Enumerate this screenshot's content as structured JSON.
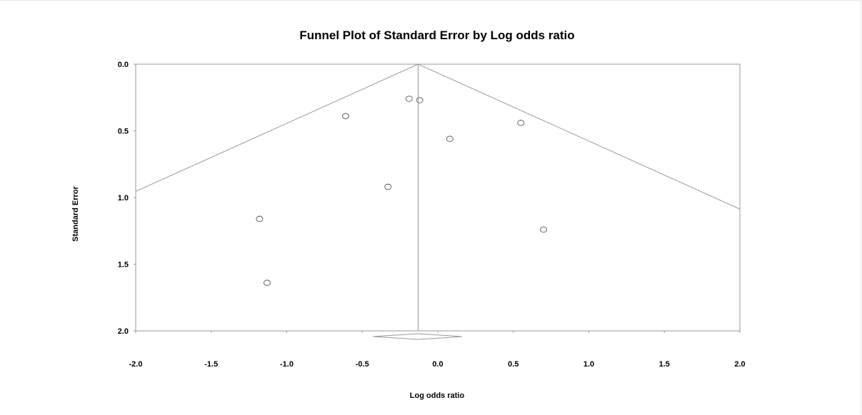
{
  "chart_data": {
    "type": "scatter",
    "title": "Funnel Plot of Standard Error by Log odds ratio",
    "xlabel": "Log odds ratio",
    "ylabel": "Standard Error",
    "xlim": [
      -2.0,
      2.0
    ],
    "ylim": [
      0.0,
      2.0
    ],
    "y_inverted": true,
    "grid": false,
    "x_ticks": [
      "-2.0",
      "-1.5",
      "-1.0",
      "-0.5",
      "0.0",
      "0.5",
      "1.0",
      "1.5",
      "2.0"
    ],
    "x_tick_values": [
      -2.0,
      -1.5,
      -1.0,
      -0.5,
      0.0,
      0.5,
      1.0,
      1.5,
      2.0
    ],
    "y_ticks": [
      "0.0",
      "0.5",
      "1.0",
      "1.5",
      "2.0"
    ],
    "y_tick_values": [
      0.0,
      0.5,
      1.0,
      1.5,
      2.0
    ],
    "summary_estimate": -0.13,
    "summary_ci": [
      -0.43,
      0.16
    ],
    "funnel_z": 1.96,
    "points": [
      {
        "x": -0.19,
        "y": 0.26
      },
      {
        "x": -0.12,
        "y": 0.27
      },
      {
        "x": -0.61,
        "y": 0.39
      },
      {
        "x": 0.08,
        "y": 0.56
      },
      {
        "x": 0.55,
        "y": 0.44
      },
      {
        "x": -0.33,
        "y": 0.92
      },
      {
        "x": -1.18,
        "y": 1.16
      },
      {
        "x": 0.7,
        "y": 1.24
      },
      {
        "x": -1.13,
        "y": 1.64
      }
    ]
  }
}
